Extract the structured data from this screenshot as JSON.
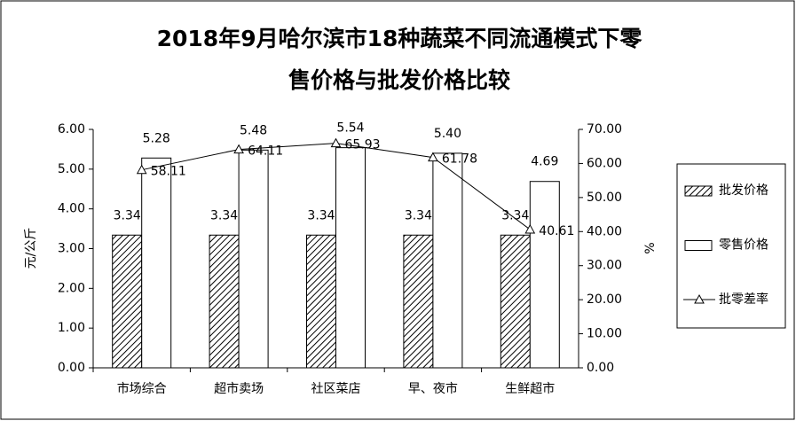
{
  "chart_data": {
    "type": "bar-line",
    "title": [
      "2018年9月哈尔滨市18种蔬菜不同流通模式下零",
      "售价格与批发价格比较"
    ],
    "ylabel": "元/公斤",
    "y2label": "%",
    "categories": [
      "市场综合",
      "超市卖场",
      "社区菜店",
      "早、夜市",
      "生鲜超市"
    ],
    "series": [
      {
        "name": "批发价格",
        "type": "bar",
        "color": "#000000",
        "pattern": "hatch",
        "values": [
          3.34,
          3.34,
          3.34,
          3.34,
          3.34
        ]
      },
      {
        "name": "零售价格",
        "type": "bar",
        "color": "#000000",
        "pattern": "none",
        "values": [
          5.28,
          5.48,
          5.54,
          5.4,
          4.69
        ],
        "value_labels": [
          "5.28",
          "5.48",
          "5.54",
          "5.40",
          "4.69"
        ]
      },
      {
        "name": "批零差率",
        "type": "line",
        "axis": "y2",
        "color": "#000000",
        "marker": "triangle",
        "values": [
          58.11,
          64.11,
          65.93,
          61.78,
          40.61
        ]
      }
    ],
    "ylim": [
      0,
      6
    ],
    "yticks": [
      {
        "value": 0,
        "label": "0.00"
      },
      {
        "value": 1,
        "label": "1.00"
      },
      {
        "value": 2,
        "label": "2.00"
      },
      {
        "value": 3,
        "label": "3.00"
      },
      {
        "value": 4,
        "label": "4.00"
      },
      {
        "value": 5,
        "label": "5.00"
      },
      {
        "value": 6,
        "label": "6.00"
      }
    ],
    "y2lim": [
      0,
      70
    ],
    "y2ticks": [
      {
        "value": 0,
        "label": "0.00"
      },
      {
        "value": 10,
        "label": "10.00"
      },
      {
        "value": 20,
        "label": "20.00"
      },
      {
        "value": 30,
        "label": "30.00"
      },
      {
        "value": 40,
        "label": "40.00"
      },
      {
        "value": 50,
        "label": "50.00"
      },
      {
        "value": 60,
        "label": "60.00"
      },
      {
        "value": 70,
        "label": "70.00"
      }
    ],
    "legend": "right"
  }
}
